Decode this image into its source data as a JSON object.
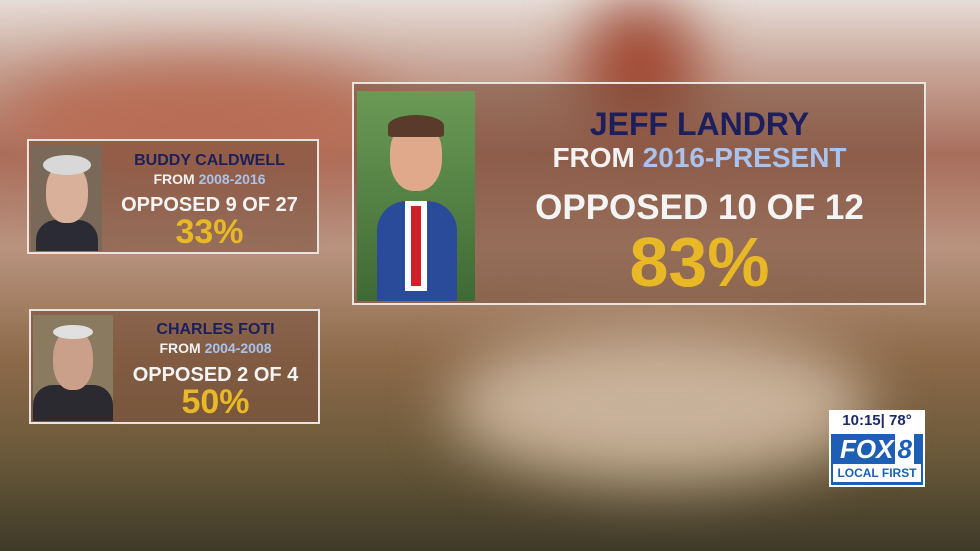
{
  "cards": [
    {
      "name": "JEFF LANDRY",
      "from": "FROM",
      "years": "2016-PRESENT",
      "opposed": "OPPOSED 10 OF 12",
      "percent": "83%"
    },
    {
      "name": "BUDDY CALDWELL",
      "from": "FROM",
      "years": "2008-2016",
      "opposed": "OPPOSED 9 OF 27",
      "percent": "33%"
    },
    {
      "name": "CHARLES FOTI",
      "from": "FROM",
      "years": "2004-2008",
      "opposed": "OPPOSED 2 OF 4",
      "percent": "50%"
    }
  ],
  "bug": {
    "time": "10:15|",
    "temperature": "78°",
    "station": "FOX",
    "channel": "8",
    "tagline": "LOCAL FIRST"
  }
}
